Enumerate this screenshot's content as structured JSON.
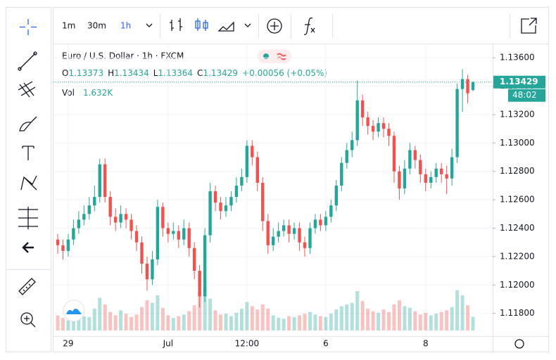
{
  "chart_data": {
    "type": "candlestick",
    "title": "Euro / U.S. Dollar · 1h · FXCM",
    "intervals": [
      "1m",
      "30m",
      "1h"
    ],
    "legend_labels": [
      "O",
      "H",
      "L",
      "C"
    ],
    "change": "+0.00056 (+0.05%)",
    "volume_name": "Vol",
    "volume_label": "1.632K",
    "countdown": "48:02",
    "up_color": "#26a69a",
    "down_color": "#ef5350",
    "grid": true,
    "ylim": [
      1.1164,
      1.137
    ],
    "yticks": [
      {
        "value": 1.118,
        "label": "1.11800"
      },
      {
        "value": 1.12,
        "label": "1.12000"
      },
      {
        "value": 1.122,
        "label": "1.12200"
      },
      {
        "value": 1.124,
        "label": "1.12400"
      },
      {
        "value": 1.126,
        "label": "1.12600"
      },
      {
        "value": 1.128,
        "label": "1.12800"
      },
      {
        "value": 1.13,
        "label": "1.13000"
      },
      {
        "value": 1.132,
        "label": "1.13200"
      },
      {
        "value": 1.134,
        "label": "1.13400"
      },
      {
        "value": 1.136,
        "label": "1.13600"
      }
    ],
    "categories": [
      null,
      null,
      "29",
      null,
      null,
      null,
      null,
      null,
      null,
      null,
      null,
      null,
      null,
      null,
      null,
      null,
      null,
      null,
      null,
      null,
      null,
      "Jul",
      null,
      null,
      null,
      null,
      null,
      null,
      null,
      null,
      null,
      null,
      null,
      null,
      null,
      null,
      "12:00",
      null,
      null,
      null,
      null,
      null,
      null,
      null,
      null,
      null,
      null,
      null,
      null,
      null,
      null,
      "6",
      null,
      null,
      null,
      null,
      null,
      null,
      null,
      null,
      null,
      null,
      null,
      null,
      null,
      null,
      null,
      null,
      null,
      null,
      "8",
      null,
      null,
      null,
      null,
      null,
      null,
      null,
      null,
      null
    ],
    "open": [
      1.1232,
      1.1228,
      1.1224,
      1.1232,
      1.124,
      1.1246,
      1.125,
      1.1256,
      1.1262,
      1.1285,
      1.1262,
      1.1248,
      1.1244,
      1.125,
      1.1246,
      1.1238,
      1.123,
      1.1215,
      1.1204,
      1.1218,
      1.1255,
      1.124,
      1.1236,
      1.1238,
      1.1232,
      1.124,
      1.1226,
      1.121,
      1.1192,
      1.1235,
      1.1266,
      1.1258,
      1.1252,
      1.1256,
      1.1262,
      1.127,
      1.1276,
      1.1298,
      1.129,
      1.1272,
      1.1245,
      1.1228,
      1.1234,
      1.1238,
      1.1242,
      1.1236,
      1.124,
      1.123,
      1.1226,
      1.124,
      1.1246,
      1.1242,
      1.1248,
      1.1256,
      1.127,
      1.1286,
      1.1295,
      1.1302,
      1.133,
      1.1318,
      1.1312,
      1.1308,
      1.1314,
      1.131,
      1.1305,
      1.128,
      1.1268,
      1.1282,
      1.1295,
      1.1288,
      1.1278,
      1.1272,
      1.1276,
      1.1282,
      1.1278,
      1.1275,
      1.129,
      1.1338,
      1.1345,
      1.13373
    ],
    "high": [
      1.1236,
      1.1232,
      1.1236,
      1.1246,
      1.1252,
      1.1256,
      1.1262,
      1.127,
      1.1289,
      1.1289,
      1.1266,
      1.1254,
      1.1256,
      1.1254,
      1.125,
      1.1242,
      1.1234,
      1.122,
      1.1224,
      1.126,
      1.1258,
      1.1244,
      1.1244,
      1.1242,
      1.1246,
      1.1244,
      1.123,
      1.1214,
      1.124,
      1.1272,
      1.127,
      1.1262,
      1.1262,
      1.1266,
      1.1276,
      1.1282,
      1.1302,
      1.1302,
      1.1294,
      1.1276,
      1.125,
      1.124,
      1.1244,
      1.1246,
      1.1246,
      1.1244,
      1.1244,
      1.1234,
      1.1244,
      1.125,
      1.125,
      1.1252,
      1.126,
      1.1274,
      1.129,
      1.13,
      1.1308,
      1.1344,
      1.1334,
      1.1322,
      1.1316,
      1.1318,
      1.1318,
      1.1314,
      1.1308,
      1.1284,
      1.1288,
      1.13,
      1.1298,
      1.1292,
      1.1282,
      1.128,
      1.1286,
      1.1286,
      1.1284,
      1.1296,
      1.1342,
      1.1352,
      1.1348,
      1.13434
    ],
    "low": [
      1.1222,
      1.1218,
      1.122,
      1.1228,
      1.1236,
      1.1242,
      1.1246,
      1.1252,
      1.1258,
      1.1258,
      1.1242,
      1.1238,
      1.124,
      1.124,
      1.1232,
      1.1224,
      1.1208,
      1.1196,
      1.12,
      1.1214,
      1.1234,
      1.123,
      1.1232,
      1.1226,
      1.1228,
      1.122,
      1.1204,
      1.1184,
      1.1188,
      1.123,
      1.1252,
      1.1246,
      1.1248,
      1.1252,
      1.1258,
      1.1266,
      1.1272,
      1.1284,
      1.1266,
      1.1238,
      1.1222,
      1.1224,
      1.123,
      1.1234,
      1.123,
      1.1232,
      1.1224,
      1.122,
      1.1222,
      1.1236,
      1.1238,
      1.1238,
      1.1244,
      1.1252,
      1.1266,
      1.1282,
      1.129,
      1.1298,
      1.1312,
      1.1306,
      1.1302,
      1.1304,
      1.1304,
      1.1298,
      1.1272,
      1.126,
      1.1264,
      1.1278,
      1.1282,
      1.1272,
      1.1266,
      1.1268,
      1.1272,
      1.1272,
      1.1264,
      1.127,
      1.1286,
      1.1322,
      1.1328,
      1.13364
    ],
    "close": [
      1.1228,
      1.1224,
      1.1232,
      1.124,
      1.1246,
      1.125,
      1.1256,
      1.1262,
      1.1285,
      1.1262,
      1.1248,
      1.1244,
      1.125,
      1.1246,
      1.1238,
      1.123,
      1.1215,
      1.1204,
      1.1218,
      1.1255,
      1.124,
      1.1236,
      1.1238,
      1.1232,
      1.124,
      1.1226,
      1.121,
      1.1192,
      1.1235,
      1.1266,
      1.1258,
      1.1252,
      1.1256,
      1.1262,
      1.127,
      1.1276,
      1.1298,
      1.129,
      1.1272,
      1.1245,
      1.1228,
      1.1234,
      1.1238,
      1.1242,
      1.1236,
      1.124,
      1.123,
      1.1226,
      1.124,
      1.1246,
      1.1242,
      1.1248,
      1.1256,
      1.127,
      1.1286,
      1.1295,
      1.1302,
      1.133,
      1.1318,
      1.1312,
      1.1308,
      1.1314,
      1.131,
      1.1305,
      1.128,
      1.1268,
      1.1282,
      1.1295,
      1.1288,
      1.1278,
      1.1272,
      1.1276,
      1.1282,
      1.1278,
      1.1275,
      1.129,
      1.1338,
      1.1345,
      1.1335,
      1.13429
    ],
    "volume": [
      1800,
      1500,
      1200,
      1400,
      2100,
      1700,
      1600,
      2600,
      3900,
      3100,
      2200,
      1800,
      2400,
      2000,
      1600,
      1900,
      2800,
      3600,
      3300,
      4200,
      2700,
      1800,
      1500,
      1700,
      1900,
      2300,
      3000,
      4600,
      5200,
      3800,
      2400,
      1900,
      2000,
      1700,
      2100,
      2600,
      3400,
      2900,
      2500,
      3100,
      2600,
      1800,
      1500,
      1400,
      1700,
      1600,
      1800,
      2000,
      2200,
      1900,
      1700,
      1600,
      2000,
      2500,
      2900,
      3100,
      3300,
      4700,
      3500,
      2600,
      2300,
      2100,
      2500,
      2200,
      3100,
      3600,
      2900,
      2700,
      2300,
      1900,
      2100,
      1800,
      2000,
      2200,
      2400,
      2800,
      4800,
      4200,
      3000,
      1632
    ]
  }
}
